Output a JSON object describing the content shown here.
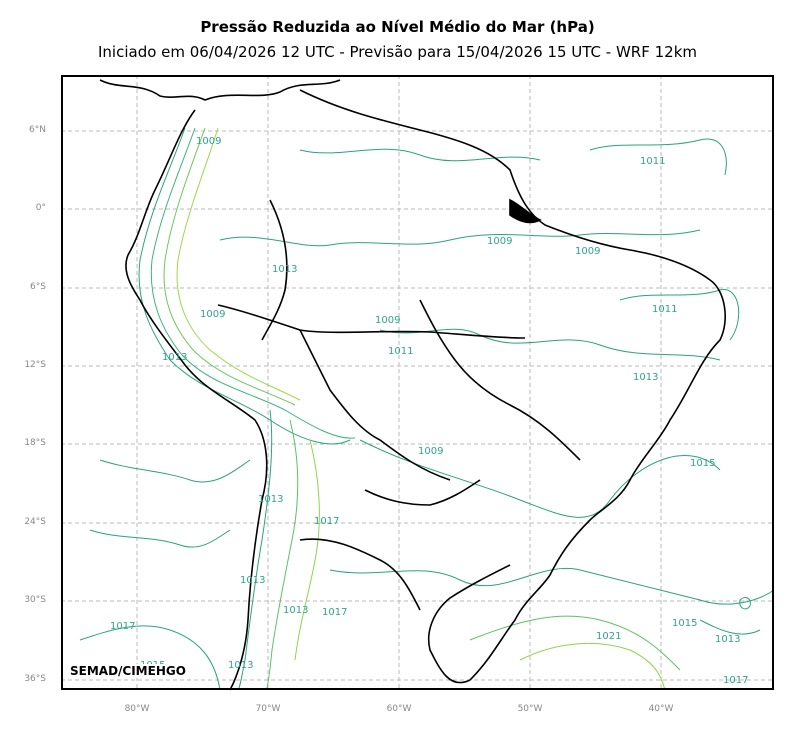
{
  "title": "Pressão Reduzida ao Nível Médio do Mar (hPa)",
  "subtitle": "Iniciado em 06/04/2026 12 UTC - Previsão para 15/04/2026 15 UTC - WRF 12km",
  "credit": "SEMAD/CIMEHGO",
  "lat_labels": [
    "6°N",
    "0°",
    "6°S",
    "12°S",
    "18°S",
    "24°S",
    "30°S",
    "36°S"
  ],
  "lon_labels": [
    "80°W",
    "70°W",
    "60°W",
    "50°W",
    "40°W"
  ],
  "contour_labels": [
    {
      "text": "1011"
    },
    {
      "text": "1009"
    },
    {
      "text": "1009"
    },
    {
      "text": "1013"
    },
    {
      "text": "1011"
    },
    {
      "text": "1009"
    },
    {
      "text": "1009"
    },
    {
      "text": "1011"
    },
    {
      "text": "1013"
    },
    {
      "text": "1013"
    },
    {
      "text": "1009"
    },
    {
      "text": "1015"
    },
    {
      "text": "1013"
    },
    {
      "text": "1017"
    },
    {
      "text": "1013"
    },
    {
      "text": "1013"
    },
    {
      "text": "1017"
    },
    {
      "text": "1013"
    },
    {
      "text": "1015"
    },
    {
      "text": "1017"
    },
    {
      "text": "1021"
    },
    {
      "text": "1015"
    },
    {
      "text": "1013"
    },
    {
      "text": "1017"
    },
    {
      "text": "1009"
    },
    {
      "text": "1013"
    }
  ],
  "colors": {
    "contour_low": "#1f9e89",
    "contour_high": "#7ad151",
    "grid": "#b0b0b0",
    "coast": "#000000"
  }
}
